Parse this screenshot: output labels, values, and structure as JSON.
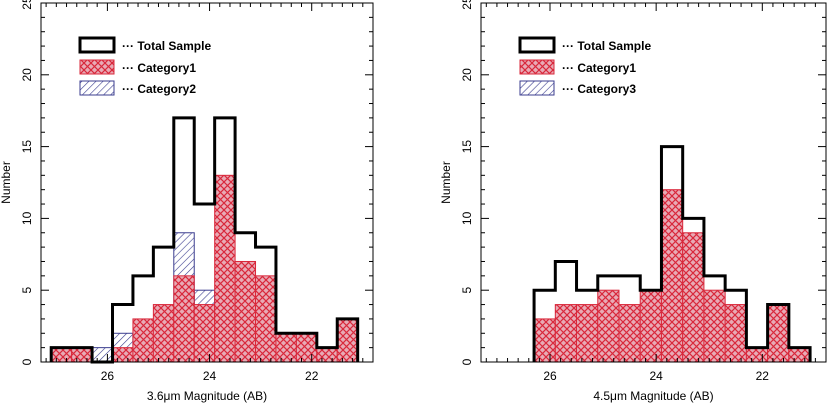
{
  "chart_data": [
    {
      "type": "bar",
      "xlabel": "3.6μm Magnitude (AB)",
      "ylabel": "Number",
      "xlim": [
        27.3,
        20.8
      ],
      "ylim": [
        0,
        25
      ],
      "x_ticks": [
        26,
        24,
        22
      ],
      "y_ticks": [
        0,
        5,
        10,
        15,
        20,
        25
      ],
      "bin_edges": [
        27.1,
        26.7,
        26.3,
        25.9,
        25.5,
        25.1,
        24.7,
        24.3,
        23.9,
        23.5,
        23.1,
        22.7,
        22.3,
        21.9,
        21.5,
        21.1
      ],
      "legend": {
        "position": "top-left",
        "entries": [
          "··· Total Sample",
          "··· Category1",
          "··· Category2"
        ]
      },
      "series": [
        {
          "name": "Total Sample",
          "style": "outline",
          "color": "#000000",
          "values": [
            1,
            1,
            0,
            4,
            6,
            8,
            17,
            11,
            17,
            9,
            8,
            2,
            2,
            1,
            3
          ]
        },
        {
          "name": "Category1",
          "style": "crosshatch",
          "color": "#d9283b",
          "values": [
            1,
            1,
            0,
            1,
            3,
            4,
            6,
            4,
            13,
            7,
            6,
            2,
            2,
            1,
            3
          ]
        },
        {
          "name": "Category2",
          "style": "diagonal",
          "color": "#3b3d8f",
          "values": [
            0,
            0,
            1,
            2,
            2,
            3,
            9,
            5,
            4,
            3,
            0,
            0,
            0,
            0,
            0
          ]
        }
      ]
    },
    {
      "type": "bar",
      "xlabel": "4.5μm Magnitude (AB)",
      "ylabel": "Number",
      "xlim": [
        27.3,
        20.8
      ],
      "ylim": [
        0,
        25
      ],
      "x_ticks": [
        26,
        24,
        22
      ],
      "y_ticks": [
        0,
        5,
        10,
        15,
        20,
        25
      ],
      "bin_edges": [
        26.3,
        25.9,
        25.5,
        25.1,
        24.7,
        24.3,
        23.9,
        23.5,
        23.1,
        22.7,
        22.3,
        21.9,
        21.5,
        21.1
      ],
      "legend": {
        "position": "top-left",
        "entries": [
          "··· Total Sample",
          "··· Category1",
          "··· Category3"
        ]
      },
      "series": [
        {
          "name": "Total Sample",
          "style": "outline",
          "color": "#000000",
          "values": [
            5,
            7,
            5,
            6,
            6,
            5,
            15,
            10,
            6,
            5,
            1,
            4,
            1
          ]
        },
        {
          "name": "Category1",
          "style": "crosshatch",
          "color": "#d9283b",
          "values": [
            3,
            4,
            4,
            5,
            4,
            5,
            12,
            9,
            5,
            4,
            1,
            4,
            1
          ]
        },
        {
          "name": "Category3",
          "style": "diagonal",
          "color": "#3b3d8f",
          "values": [
            2,
            3,
            1,
            1,
            0,
            1,
            3,
            0,
            1,
            0,
            0,
            0,
            0
          ]
        }
      ]
    }
  ]
}
